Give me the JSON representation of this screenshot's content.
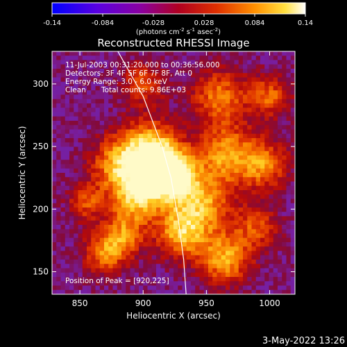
{
  "chart_data": {
    "type": "heatmap",
    "title": "Reconstructed RHESSI Image",
    "colorbar": {
      "ticks": [
        "-0.14",
        "-0.084",
        "-0.028",
        "0.028",
        "0.084",
        "0.14"
      ],
      "range": [
        -0.14,
        0.14
      ],
      "units_parts": [
        "(photons cm",
        "-2",
        " s",
        "-1",
        " asec",
        "-2",
        ")"
      ]
    },
    "xlabel": "Heliocentric X (arcsec)",
    "ylabel": "Heliocentric Y (arcsec)",
    "xlim": [
      828,
      1020
    ],
    "ylim": [
      132,
      326
    ],
    "xticks": [
      "850",
      "900",
      "950",
      "1000"
    ],
    "yticks": [
      "150",
      "200",
      "250",
      "300"
    ],
    "annotations": {
      "time": "11-Jul-2003 00:31:20.000 to 00:36:56.000",
      "detectors": "Detectors: 3F 4F 5F 6F 7F 8F, Att 0",
      "energy": "Energy Range: 3.0 - 6.0 keV",
      "method": "Clean",
      "counts": "Total counts: 9.86E+03",
      "peak": "Position of Peak = [920,225]"
    },
    "peak_position": [
      920,
      225
    ],
    "limb_curve": [
      [
        880,
        326
      ],
      [
        900,
        290
      ],
      [
        915,
        250
      ],
      [
        922,
        225
      ],
      [
        928,
        190
      ],
      [
        932,
        160
      ],
      [
        934,
        132
      ]
    ],
    "hotspots": [
      {
        "x": 920,
        "y": 228,
        "amp": 1.0,
        "sigma": 13
      },
      {
        "x": 905,
        "y": 247,
        "amp": 0.7,
        "sigma": 16
      },
      {
        "x": 895,
        "y": 210,
        "amp": 0.6,
        "sigma": 14
      },
      {
        "x": 945,
        "y": 205,
        "amp": 0.55,
        "sigma": 18
      },
      {
        "x": 930,
        "y": 180,
        "amp": 0.5,
        "sigma": 14
      },
      {
        "x": 880,
        "y": 235,
        "amp": 0.5,
        "sigma": 15
      },
      {
        "x": 965,
        "y": 245,
        "amp": 0.5,
        "sigma": 16
      },
      {
        "x": 960,
        "y": 290,
        "amp": 0.45,
        "sigma": 15
      },
      {
        "x": 995,
        "y": 235,
        "amp": 0.45,
        "sigma": 14
      },
      {
        "x": 990,
        "y": 185,
        "amp": 0.35,
        "sigma": 12
      },
      {
        "x": 965,
        "y": 160,
        "amp": 0.55,
        "sigma": 14
      },
      {
        "x": 870,
        "y": 165,
        "amp": 0.45,
        "sigma": 12
      },
      {
        "x": 855,
        "y": 205,
        "amp": 0.35,
        "sigma": 10
      },
      {
        "x": 1000,
        "y": 290,
        "amp": 0.4,
        "sigma": 12
      },
      {
        "x": 900,
        "y": 300,
        "amp": 0.35,
        "sigma": 12
      },
      {
        "x": 885,
        "y": 180,
        "amp": 0.4,
        "sigma": 12
      }
    ]
  },
  "footer": {
    "date": "3-May-2022 13:26"
  }
}
